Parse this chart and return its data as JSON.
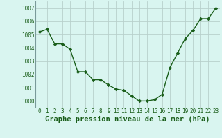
{
  "hours": [
    0,
    1,
    2,
    3,
    4,
    5,
    6,
    7,
    8,
    9,
    10,
    11,
    12,
    13,
    14,
    15,
    16,
    17,
    18,
    19,
    20,
    21,
    22,
    23
  ],
  "pressure": [
    1005.2,
    1005.4,
    1004.3,
    1004.3,
    1003.9,
    1002.2,
    1002.2,
    1001.6,
    1001.6,
    1001.2,
    1000.9,
    1000.8,
    1000.4,
    1000.0,
    1000.0,
    1000.1,
    1000.5,
    1002.5,
    1003.6,
    1004.7,
    1005.3,
    1006.2,
    1006.2,
    1007.0
  ],
  "line_color": "#1a5e1a",
  "marker": "D",
  "marker_size": 2.2,
  "line_width": 1.0,
  "background_color": "#d9f5f0",
  "grid_color": "#b8d0cc",
  "xlabel": "Graphe pression niveau de la mer (hPa)",
  "xlabel_fontsize": 7.5,
  "xlabel_color": "#1a5e1a",
  "ytick_labels": [
    "1000",
    "1001",
    "1002",
    "1003",
    "1004",
    "1005",
    "1006",
    "1007"
  ],
  "ytick_vals": [
    1000,
    1001,
    1002,
    1003,
    1004,
    1005,
    1006,
    1007
  ],
  "xtick_vals": [
    0,
    1,
    2,
    3,
    4,
    5,
    6,
    7,
    8,
    9,
    10,
    11,
    12,
    13,
    14,
    15,
    16,
    17,
    18,
    19,
    20,
    21,
    22,
    23
  ],
  "ylim": [
    999.5,
    1007.5
  ],
  "xlim": [
    -0.5,
    23.5
  ],
  "tick_fontsize": 5.5,
  "tick_color": "#1a5e1a"
}
